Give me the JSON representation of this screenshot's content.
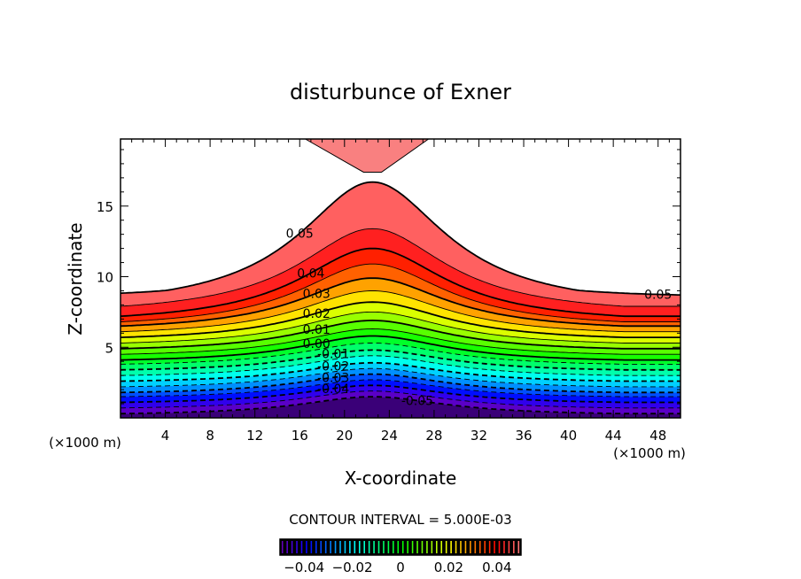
{
  "chart_data": {
    "type": "contour",
    "title": "disturbunce of Exner",
    "xlabel": "X-coordinate",
    "ylabel": "Z-coordinate",
    "x_unit_label": "(×1000 m)",
    "x_unit_label_right": "(×1000 m)",
    "xlim": [
      0,
      50
    ],
    "ylim": [
      0,
      19.75
    ],
    "x_ticks": [
      4,
      8,
      12,
      16,
      20,
      24,
      28,
      32,
      36,
      40,
      44,
      48
    ],
    "y_ticks": [
      5,
      10,
      15
    ],
    "mountain_center_x": 22.5,
    "contour_interval_text": "CONTOUR INTERVAL = 5.000E-03",
    "contour_interval": 0.005,
    "levels": [
      -0.05,
      -0.045,
      -0.04,
      -0.035,
      -0.03,
      -0.025,
      -0.02,
      -0.015,
      -0.01,
      -0.005,
      0,
      0.005,
      0.01,
      0.015,
      0.02,
      0.025,
      0.03,
      0.035,
      0.04,
      0.045,
      0.05
    ],
    "level_height_center": [
      1.5,
      1.9,
      2.3,
      2.7,
      3.1,
      3.5,
      3.9,
      4.4,
      4.8,
      5.3,
      5.8,
      6.3,
      6.9,
      7.5,
      8.2,
      9.0,
      9.9,
      10.9,
      12.0,
      13.4,
      16.7
    ],
    "level_height_edge": [
      0.3,
      0.7,
      1.1,
      1.5,
      1.8,
      2.2,
      2.6,
      3.0,
      3.4,
      3.8,
      4.1,
      4.5,
      4.9,
      5.3,
      5.7,
      6.1,
      6.5,
      6.8,
      7.2,
      7.9,
      8.6
    ],
    "contour_labels": [
      {
        "text": "0.05",
        "level": 0.05,
        "x": 16
      },
      {
        "text": "0.05",
        "level": 0.05,
        "x": 48
      },
      {
        "text": "0.04",
        "level": 0.04,
        "x": 17
      },
      {
        "text": "0.03",
        "level": 0.03,
        "x": 17.5
      },
      {
        "text": "0.02",
        "level": 0.02,
        "x": 17.5
      },
      {
        "text": "0.01",
        "level": 0.01,
        "x": 17.5
      },
      {
        "text": "0.00",
        "level": 0,
        "x": 17.5
      },
      {
        "text": "-0.01",
        "level": -0.01,
        "x": 19
      },
      {
        "text": "-0.02",
        "level": -0.02,
        "x": 19
      },
      {
        "text": "-0.03",
        "level": -0.03,
        "x": 19
      },
      {
        "text": "-0.04",
        "level": -0.04,
        "x": 19
      },
      {
        "text": "-0.05",
        "level": -0.05,
        "x": 26.5
      }
    ],
    "upper_region": {
      "level": 0.05,
      "bottom_z": 17.4,
      "x_range_at_top": [
        16.5,
        27.5
      ]
    },
    "colorbar": {
      "range": [
        -0.05,
        0.05
      ],
      "tick_values": [
        -0.04,
        -0.02,
        0,
        0.02,
        0.04
      ],
      "tick_labels": [
        "−0.04",
        "−0.02",
        "0",
        "0.02",
        "0.04"
      ]
    }
  }
}
